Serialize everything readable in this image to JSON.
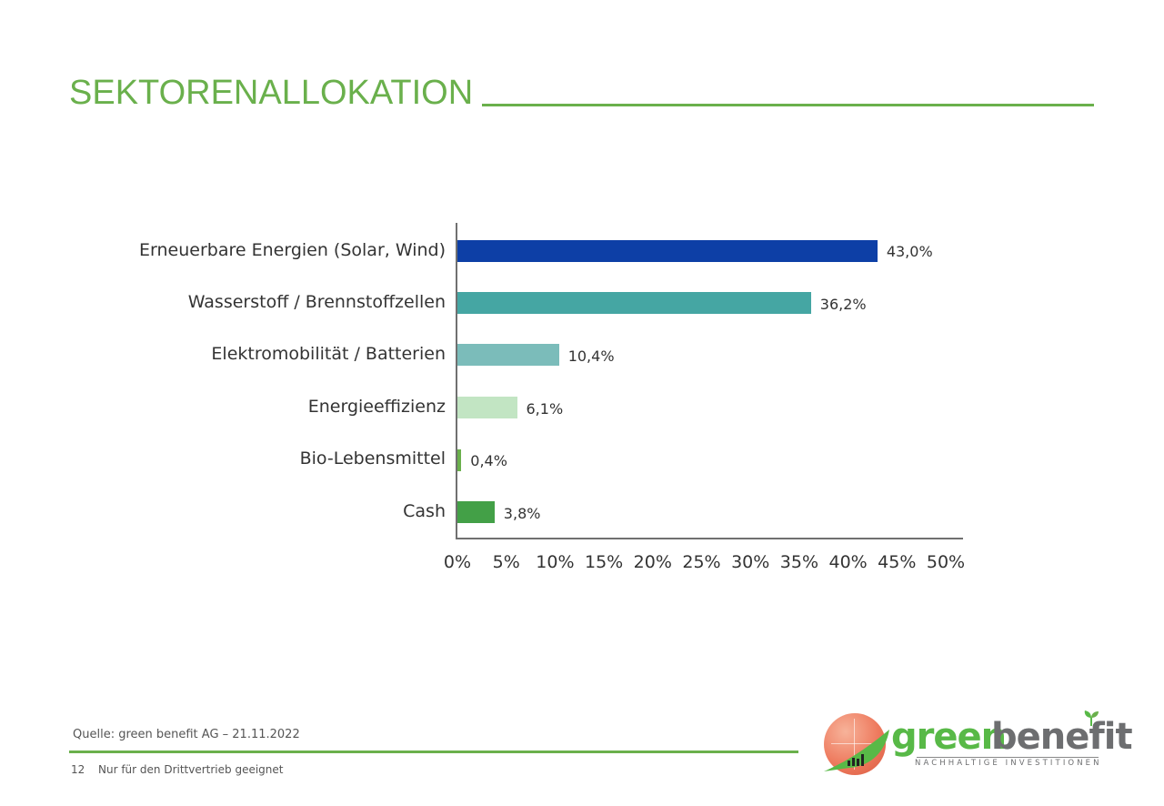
{
  "header": {
    "title": "SEKTORENALLOKATION"
  },
  "colors": {
    "accent": "#6ab04c",
    "axis": "#707070",
    "text": "#333333"
  },
  "chart_data": {
    "type": "bar",
    "orientation": "horizontal",
    "title": "",
    "xlabel": "",
    "ylabel": "",
    "categories": [
      "Erneuerbare Energien (Solar, Wind)",
      "Wasserstoff / Brennstoffzellen",
      "Elektromobilität / Batterien",
      "Energieeffizienz",
      "Bio-Lebensmittel",
      "Cash"
    ],
    "values": [
      43.0,
      36.2,
      10.4,
      6.1,
      0.4,
      3.8
    ],
    "value_labels": [
      "43,0%",
      "36,2%",
      "10,4%",
      "6,1%",
      "0,4%",
      "3,8%"
    ],
    "bar_colors": [
      "#0d3fa6",
      "#45a6a3",
      "#7bbcba",
      "#c2e5c3",
      "#6ab04c",
      "#43a047"
    ],
    "xlim": [
      0,
      50
    ],
    "xticks": [
      "0%",
      "5%",
      "10%",
      "15%",
      "20%",
      "25%",
      "30%",
      "35%",
      "40%",
      "45%",
      "50%"
    ],
    "grid": false,
    "legend": "none"
  },
  "footer": {
    "source": "Quelle: green benefit AG – 21.11.2022",
    "page_number": "12",
    "disclaimer": "Nur für den Drittvertrieb geeignet"
  },
  "logo": {
    "word1": "green",
    "word2": "benefit",
    "tagline": "NACHHALTIGE INVESTITIONEN"
  }
}
